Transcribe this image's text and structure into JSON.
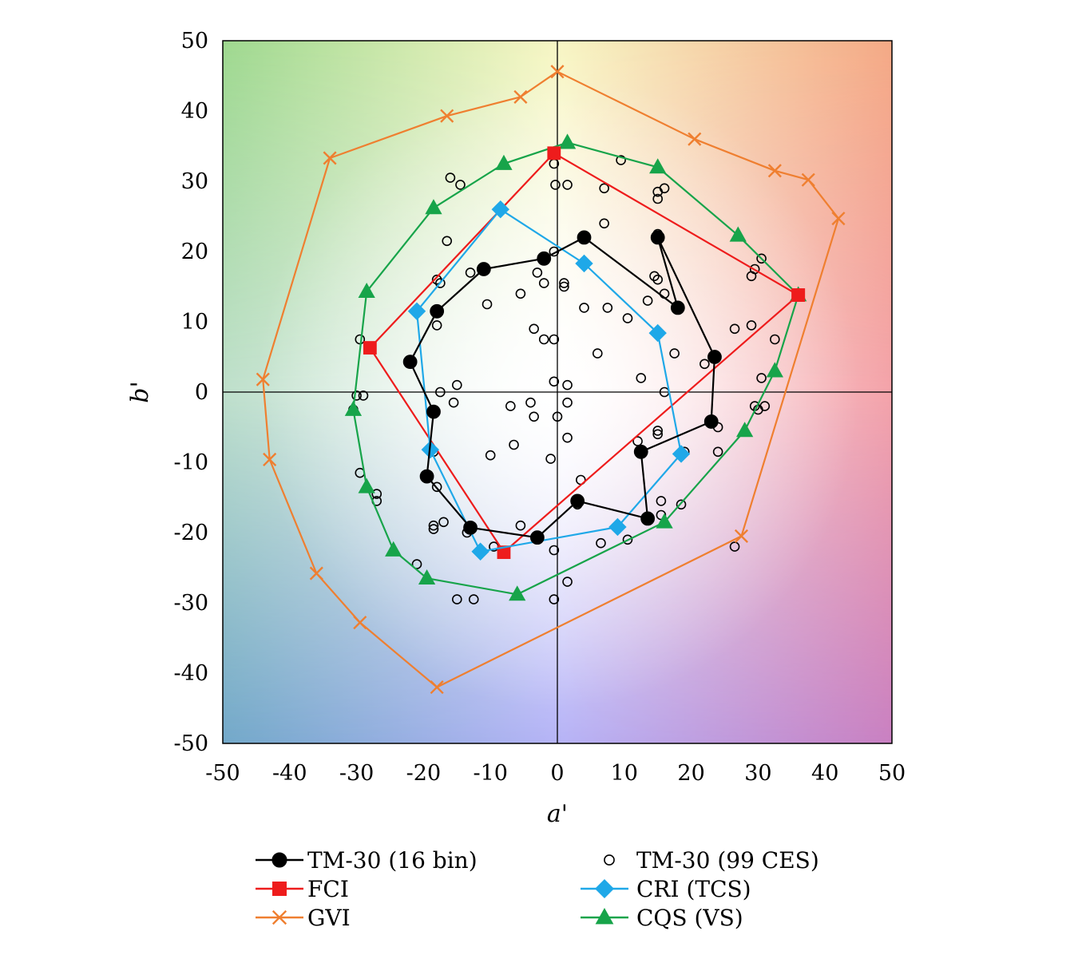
{
  "chart_data": {
    "type": "scatter",
    "xlabel": "a'",
    "ylabel": "b'",
    "xlim": [
      -50,
      50
    ],
    "ylim": [
      -50,
      50
    ],
    "xticks": [
      "-50",
      "-40",
      "-30",
      "-20",
      "-10",
      "0",
      "10",
      "20",
      "30",
      "40",
      "50"
    ],
    "yticks": [
      "50",
      "40",
      "30",
      "20",
      "10",
      "0",
      "-10",
      "-20",
      "-30",
      "-40",
      "-50"
    ],
    "grid": false,
    "background": "hue gradient (green top-left, yellow top, orange top-right, red right, magenta bottom-right, blue bottom, teal bottom-left, white center)",
    "legend_position": "bottom",
    "series": [
      {
        "name": "TM-30 (16 bin)",
        "marker": "circle-filled",
        "color": "#000000",
        "closed": true,
        "x": [
          23.5,
          15,
          18,
          4,
          -2,
          -11,
          -18,
          -22,
          -18.5,
          -19.5,
          -13,
          -3,
          3,
          13.5,
          12.5,
          23
        ],
        "y": [
          5,
          22,
          12,
          22,
          19,
          17.5,
          11.5,
          4.3,
          -2.8,
          -12,
          -19.3,
          -20.7,
          -15.5,
          -18,
          -8.5,
          -4.2
        ]
      },
      {
        "name": "TM-30 (99 CES)",
        "marker": "circle-open",
        "color": "#000000",
        "closed": false,
        "x": [
          -0.5,
          -0.3,
          1.5,
          7,
          9.5,
          15,
          15,
          16,
          -16,
          -14.5,
          -16.5,
          -18,
          -13,
          -3,
          -0.5,
          -2,
          1,
          1,
          -10.5,
          -5.5,
          -17.5,
          -18,
          -3.5,
          -2,
          -0.5,
          14.5,
          15,
          16,
          13.5,
          7,
          7.5,
          15,
          10.5,
          17.5,
          6,
          12.5,
          -0.5,
          1.5,
          16,
          1.5,
          -15,
          -15.5,
          -17.5,
          -7,
          -6.5,
          -4,
          -3.5,
          -29.5,
          -29,
          -30,
          -30.5,
          -29.5,
          -27,
          -27,
          -18.5,
          -18,
          -18.5,
          -18.5,
          -17,
          -13.5,
          -9.5,
          -5.5,
          -21,
          -0.5,
          1.5,
          3.5,
          3,
          6.5,
          10.5,
          12,
          12.5,
          15,
          15,
          15.5,
          15.5,
          18.5,
          19,
          22,
          24,
          26.5,
          29,
          29.5,
          30.5,
          30.5,
          32.5,
          29,
          31,
          30,
          29.5,
          24,
          26.5,
          4,
          -1,
          -10,
          0,
          1.5,
          -12.5,
          -15,
          -0.5
        ],
        "y": [
          32.5,
          29.5,
          29.5,
          29,
          33,
          22.5,
          28.5,
          29,
          30.5,
          29.5,
          21.5,
          16,
          17,
          17,
          20,
          15.5,
          15.5,
          15,
          12.5,
          14,
          15.5,
          9.5,
          9,
          7.5,
          7.5,
          16.5,
          16,
          14,
          13,
          24,
          12,
          27.5,
          10.5,
          5.5,
          5.5,
          2,
          1.5,
          1,
          0,
          -1.5,
          1,
          -1.5,
          0,
          -2,
          -7.5,
          -1.5,
          -3.5,
          7.5,
          -0.5,
          -0.5,
          -2.5,
          -11.5,
          -14.5,
          -15.5,
          -8.5,
          -13.5,
          -19,
          -19.5,
          -18.5,
          -20,
          -22,
          -19,
          -24.5,
          -22.5,
          -27,
          -12.5,
          -16,
          -21.5,
          -21,
          -7,
          -8.5,
          -5.5,
          -6,
          -17.5,
          -15.5,
          -16,
          -8.5,
          4,
          -5,
          9,
          16.5,
          17.5,
          19,
          2,
          7.5,
          9.5,
          -2,
          -2.5,
          -2,
          -8.5,
          -22,
          12,
          -9.5,
          -9,
          -3.5,
          -6.5,
          -29.5,
          -29.5,
          -29.5
        ]
      },
      {
        "name": "FCI",
        "marker": "square-filled",
        "color": "#ee1c1c",
        "closed": true,
        "x": [
          36,
          -0.5,
          -28,
          -8,
          36
        ],
        "y": [
          13.8,
          34,
          6.3,
          -22.8,
          13.8
        ]
      },
      {
        "name": "CRI (TCS)",
        "marker": "diamond-filled",
        "color": "#1fa8e8",
        "closed": true,
        "x": [
          -8.5,
          4,
          15,
          18.5,
          9,
          -11.5,
          -19,
          -21
        ],
        "y": [
          26,
          18.3,
          8.4,
          -8.8,
          -19.2,
          -22.7,
          -8.2,
          11.5
        ]
      },
      {
        "name": "GVI",
        "marker": "x",
        "color": "#ef7f30",
        "closed": true,
        "x": [
          0,
          -5.5,
          -16.5,
          -34,
          -44,
          -43,
          -36,
          -29.5,
          -18,
          27.5,
          42,
          37.5,
          32.5,
          20.5
        ],
        "y": [
          45.6,
          42,
          39.3,
          33.3,
          1.8,
          -9.6,
          -25.8,
          -32.8,
          -42,
          -20.5,
          24.7,
          30.2,
          31.5,
          36
        ]
      },
      {
        "name": "CQS (VS)",
        "marker": "triangle-filled",
        "color": "#17a44a",
        "closed": true,
        "x": [
          1.5,
          15,
          27,
          36,
          32.5,
          28,
          16,
          -6,
          -19.5,
          -24.5,
          -28.5,
          -30.5,
          -28.5,
          -18.5,
          -8
        ],
        "y": [
          35.5,
          32,
          22.3,
          13.8,
          3,
          -5.5,
          -18.5,
          -28.8,
          -26.5,
          -22.5,
          -13.5,
          -2.5,
          14.3,
          26.2,
          32.5
        ]
      }
    ]
  },
  "legend": {
    "items": [
      "TM-30 (16 bin)",
      "TM-30 (99 CES)",
      "FCI",
      "CRI (TCS)",
      "GVI",
      "CQS (VS)"
    ]
  },
  "colors": {
    "tm30_bin": "#000000",
    "fci": "#ee1c1c",
    "cri": "#1fa8e8",
    "gvi": "#ef7f30",
    "cqs": "#17a44a"
  }
}
